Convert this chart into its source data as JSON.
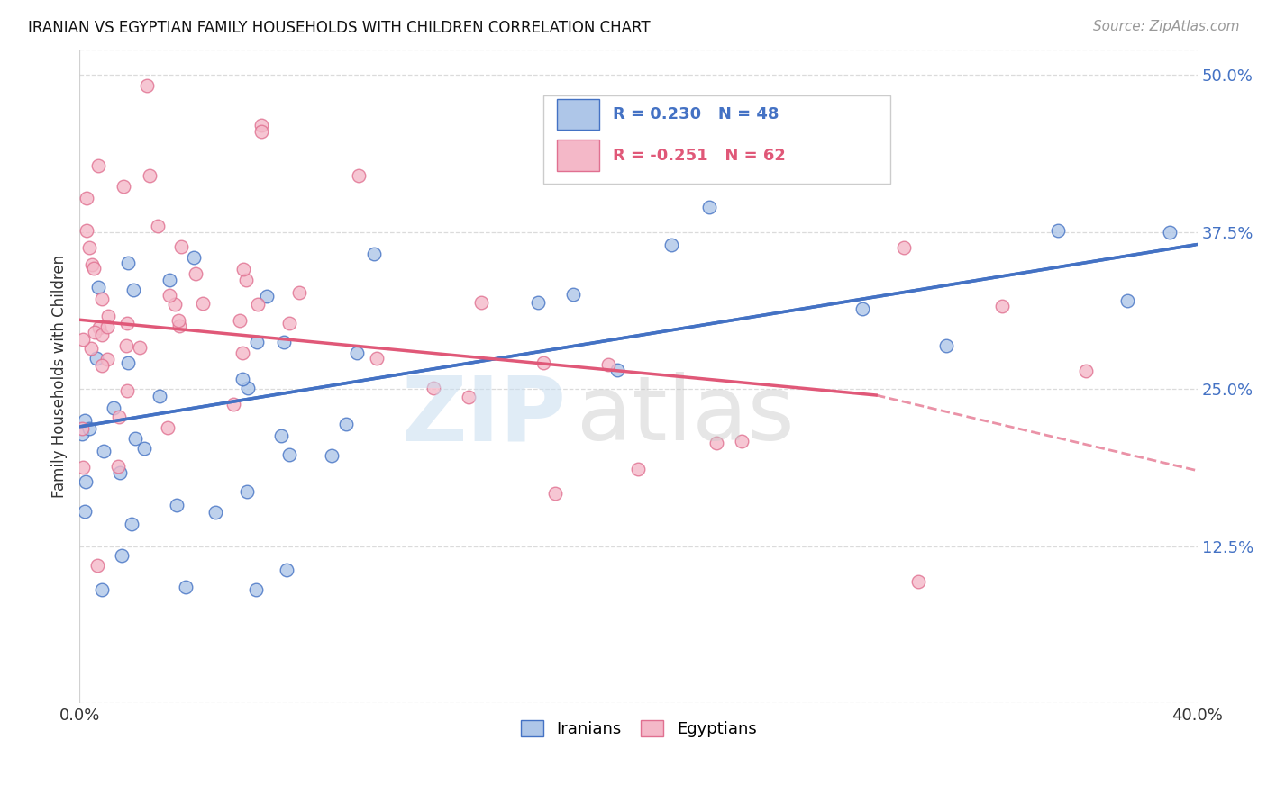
{
  "title": "IRANIAN VS EGYPTIAN FAMILY HOUSEHOLDS WITH CHILDREN CORRELATION CHART",
  "source": "Source: ZipAtlas.com",
  "ylabel": "Family Households with Children",
  "legend_iranian_R": 0.23,
  "legend_iranian_N": 48,
  "legend_egyptian_R": -0.251,
  "legend_egyptian_N": 62,
  "iranian_color": "#aec6e8",
  "iranian_edge_color": "#4472c4",
  "egyptian_color": "#f4b8c8",
  "egyptian_edge_color": "#e07090",
  "iranian_line_color": "#4472c4",
  "egyptian_line_color": "#e05878",
  "xlim": [
    0.0,
    0.4
  ],
  "ylim": [
    0.0,
    0.52
  ],
  "ytick_values": [
    0.0,
    0.125,
    0.25,
    0.375,
    0.5
  ],
  "ytick_labels": [
    "",
    "12.5%",
    "25.0%",
    "37.5%",
    "50.0%"
  ],
  "iran_line_start_x": 0.0,
  "iran_line_start_y": 0.22,
  "iran_line_end_x": 0.4,
  "iran_line_end_y": 0.365,
  "egypt_line_solid_start_x": 0.0,
  "egypt_line_solid_start_y": 0.305,
  "egypt_line_solid_end_x": 0.285,
  "egypt_line_solid_end_y": 0.245,
  "egypt_line_dash_start_x": 0.285,
  "egypt_line_dash_start_y": 0.245,
  "egypt_line_dash_end_x": 0.4,
  "egypt_line_dash_end_y": 0.185,
  "watermark_zip_color": "#c8ddf0",
  "watermark_atlas_color": "#c8c8c8",
  "grid_color": "#cccccc",
  "background_color": "#ffffff",
  "title_fontsize": 12,
  "source_fontsize": 11,
  "tick_fontsize": 13,
  "ylabel_fontsize": 12,
  "legend_fontsize": 13
}
